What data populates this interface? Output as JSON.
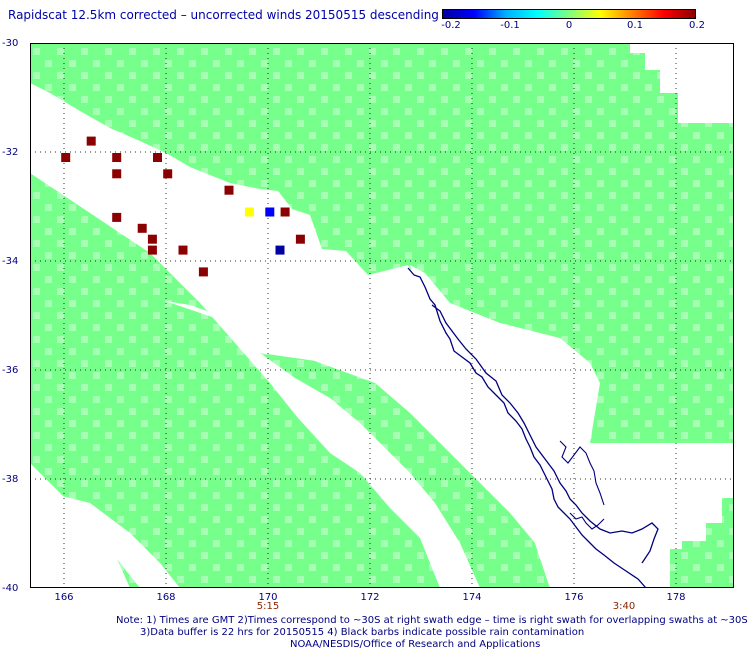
{
  "title": "Rapidscat 12.5km corrected – uncorrected winds 20150515 descending",
  "colorbar": {
    "ticks": [
      "-0.2",
      "-0.1",
      "0",
      "0.1",
      "0.2"
    ],
    "colors": [
      "#0000a0",
      "#0000ff",
      "#00b0ff",
      "#00ffff",
      "#7fff7f",
      "#ffff00",
      "#ff8000",
      "#ff0000",
      "#8b0000"
    ]
  },
  "axes": {
    "lat_labels": [
      "-30",
      "-32",
      "-34",
      "-36",
      "-38",
      "-40"
    ],
    "lon_labels": [
      "166",
      "168",
      "170",
      "172",
      "174",
      "176",
      "178"
    ]
  },
  "time_labels": [
    "5:15",
    "3:40"
  ],
  "notes": [
    "Note: 1) Times are GMT 2)Times correspond to ~30S at right swath edge – time is right swath for overlapping swaths at ~30S",
    "3)Data buffer is 22 hrs for 20150515 4) Black barbs indicate possible rain contamination",
    "NOAA/NESDIS/Office of Research and Applications"
  ],
  "colors": {
    "swath": "#77ff8c",
    "coast": "#000080",
    "text": "#000080",
    "time": "#8b2500"
  },
  "map_data": {
    "lat_range": [
      -40,
      -30
    ],
    "lon_range": [
      165.3,
      179.1
    ],
    "cells": [
      {
        "lon": 166.0,
        "lat": -32.1,
        "color": "#8b0000"
      },
      {
        "lon": 166.5,
        "lat": -31.8,
        "color": "#8b0000"
      },
      {
        "lon": 167.0,
        "lat": -32.1,
        "color": "#8b0000"
      },
      {
        "lon": 167.0,
        "lat": -32.4,
        "color": "#8b0000"
      },
      {
        "lon": 167.0,
        "lat": -33.2,
        "color": "#8b0000"
      },
      {
        "lon": 167.5,
        "lat": -33.4,
        "color": "#8b0000"
      },
      {
        "lon": 167.7,
        "lat": -33.6,
        "color": "#8b0000"
      },
      {
        "lon": 167.7,
        "lat": -33.8,
        "color": "#8b0000"
      },
      {
        "lon": 167.8,
        "lat": -32.1,
        "color": "#8b0000"
      },
      {
        "lon": 168.0,
        "lat": -32.4,
        "color": "#8b0000"
      },
      {
        "lon": 168.3,
        "lat": -33.8,
        "color": "#8b0000"
      },
      {
        "lon": 168.7,
        "lat": -34.2,
        "color": "#8b0000"
      },
      {
        "lon": 169.2,
        "lat": -32.7,
        "color": "#8b0000"
      },
      {
        "lon": 169.6,
        "lat": -33.1,
        "color": "#ffff00"
      },
      {
        "lon": 170.0,
        "lat": -33.1,
        "color": "#0000ff"
      },
      {
        "lon": 170.3,
        "lat": -33.1,
        "color": "#8b0000"
      },
      {
        "lon": 170.2,
        "lat": -33.8,
        "color": "#0000a0"
      },
      {
        "lon": 170.6,
        "lat": -33.6,
        "color": "#8b0000"
      }
    ]
  }
}
